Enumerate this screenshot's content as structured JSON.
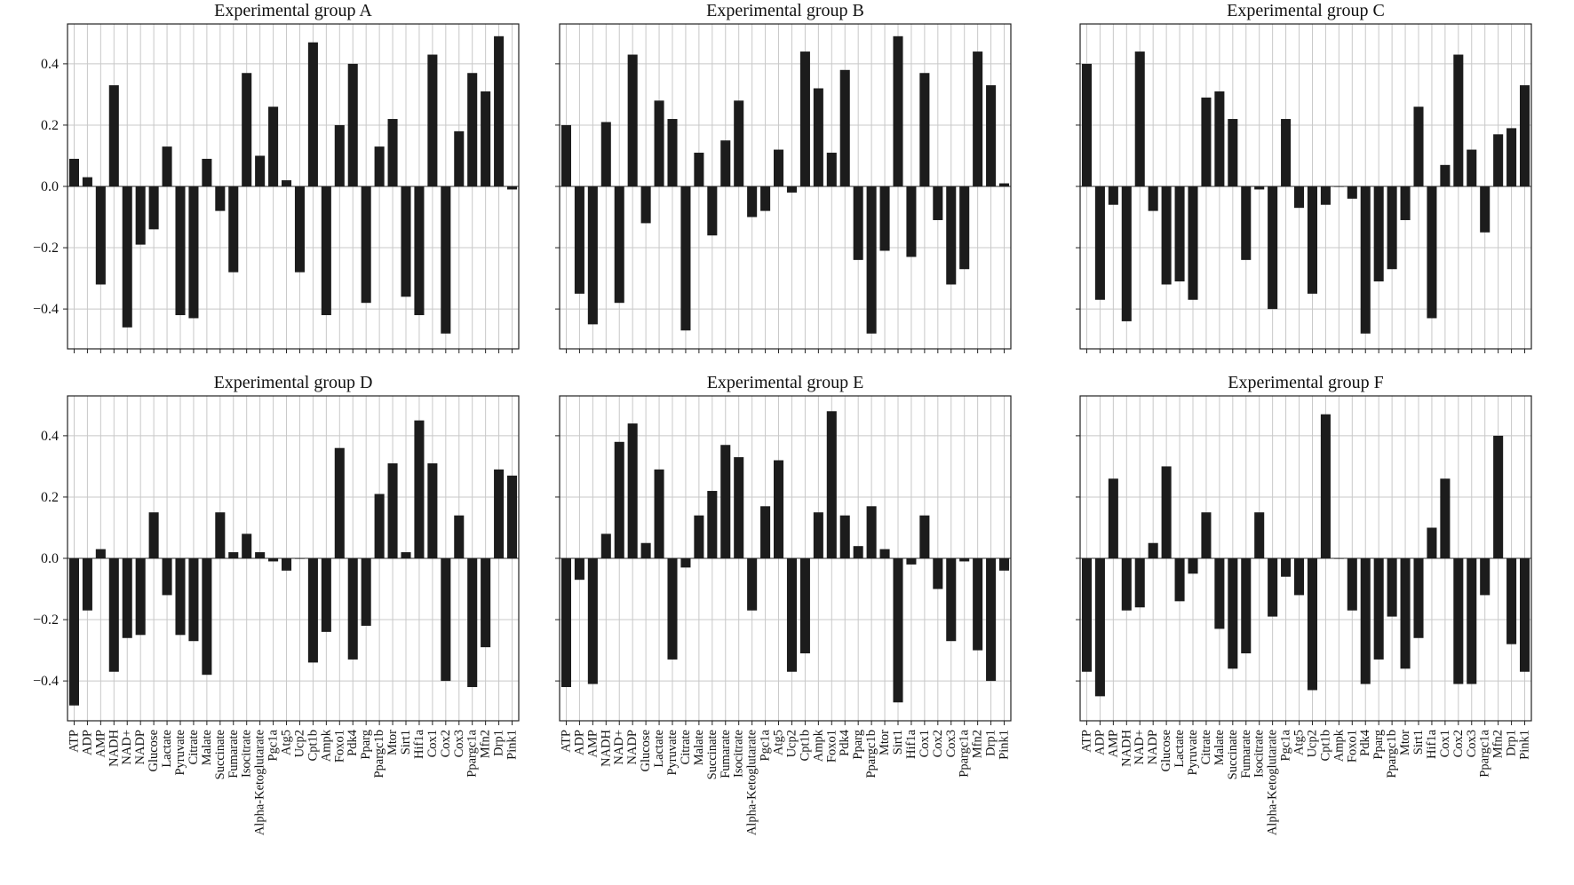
{
  "chart_data": {
    "type": "bar",
    "layout": "2x3 small multiples",
    "categories": [
      "ATP",
      "ADP",
      "AMP",
      "NADH",
      "NAD+",
      "NADP",
      "Glucose",
      "Lactate",
      "Pyruvate",
      "Citrate",
      "Malate",
      "Succinate",
      "Fumarate",
      "Isocitrate",
      "Alpha-Ketoglutarate",
      "Pgc1a",
      "Atg5",
      "Ucp2",
      "Cpt1b",
      "Ampk",
      "Foxo1",
      "Pdk4",
      "Pparg",
      "Ppargc1b",
      "Mtor",
      "Sirt1",
      "Hif1a",
      "Cox1",
      "Cox2",
      "Cox3",
      "Ppargc1a",
      "Mfn2",
      "Drp1",
      "Pink1"
    ],
    "ylim": [
      -0.53,
      0.53
    ],
    "yticks": [
      -0.4,
      -0.2,
      0.0,
      0.2,
      0.4
    ],
    "ytick_labels": [
      "−0.4",
      "−0.2",
      "0.0",
      "0.2",
      "0.4"
    ],
    "grid": true,
    "panels": [
      {
        "title": "Experimental group A",
        "values": [
          0.09,
          0.03,
          -0.32,
          0.33,
          -0.46,
          -0.19,
          -0.14,
          0.13,
          -0.42,
          -0.43,
          0.09,
          -0.08,
          -0.28,
          0.37,
          0.1,
          0.26,
          0.02,
          -0.28,
          0.47,
          -0.42,
          0.2,
          0.4,
          -0.38,
          0.13,
          0.22,
          -0.36,
          -0.42,
          0.43,
          -0.48,
          0.18,
          0.37,
          0.31,
          0.49,
          -0.01
        ]
      },
      {
        "title": "Experimental group B",
        "values": [
          0.2,
          -0.35,
          -0.45,
          0.21,
          -0.38,
          0.43,
          -0.12,
          0.28,
          0.22,
          -0.47,
          0.11,
          -0.16,
          0.15,
          0.28,
          -0.1,
          -0.08,
          0.12,
          -0.02,
          0.44,
          0.32,
          0.11,
          0.38,
          -0.24,
          -0.48,
          -0.21,
          0.49,
          -0.23,
          0.37,
          -0.11,
          -0.32,
          -0.27,
          0.44,
          0.33,
          0.01
        ]
      },
      {
        "title": "Experimental group C",
        "values": [
          0.4,
          -0.37,
          -0.06,
          -0.44,
          0.44,
          -0.08,
          -0.32,
          -0.31,
          -0.37,
          0.29,
          0.31,
          0.22,
          -0.24,
          -0.01,
          -0.4,
          0.22,
          -0.07,
          -0.35,
          -0.06,
          0.0,
          -0.04,
          -0.48,
          -0.31,
          -0.27,
          -0.11,
          0.26,
          -0.43,
          0.07,
          0.43,
          0.12,
          -0.15,
          0.17,
          0.19,
          0.33
        ]
      },
      {
        "title": "Experimental group D",
        "values": [
          -0.48,
          -0.17,
          0.03,
          -0.37,
          -0.26,
          -0.25,
          0.15,
          -0.12,
          -0.25,
          -0.27,
          -0.38,
          0.15,
          0.02,
          0.08,
          0.02,
          -0.01,
          -0.04,
          0.0,
          -0.34,
          -0.24,
          0.36,
          -0.33,
          -0.22,
          0.21,
          0.31,
          0.02,
          0.45,
          0.31,
          -0.4,
          0.14,
          -0.42,
          -0.29,
          0.29,
          0.27
        ]
      },
      {
        "title": "Experimental group E",
        "values": [
          -0.42,
          -0.07,
          -0.41,
          0.08,
          0.38,
          0.44,
          0.05,
          0.29,
          -0.33,
          -0.03,
          0.14,
          0.22,
          0.37,
          0.33,
          -0.17,
          0.17,
          0.32,
          -0.37,
          -0.31,
          0.15,
          0.48,
          0.14,
          0.04,
          0.17,
          0.03,
          -0.47,
          -0.02,
          0.14,
          -0.1,
          -0.27,
          -0.01,
          -0.3,
          -0.4,
          -0.04
        ]
      },
      {
        "title": "Experimental group F",
        "values": [
          -0.37,
          -0.45,
          0.26,
          -0.17,
          -0.16,
          0.05,
          0.3,
          -0.14,
          -0.05,
          0.15,
          -0.23,
          -0.36,
          -0.31,
          0.15,
          -0.19,
          -0.06,
          -0.12,
          -0.43,
          0.47,
          0.0,
          -0.17,
          -0.41,
          -0.33,
          -0.19,
          -0.36,
          -0.26,
          0.1,
          0.26,
          -0.41,
          -0.41,
          -0.12,
          0.4,
          -0.28,
          -0.37
        ]
      }
    ]
  }
}
